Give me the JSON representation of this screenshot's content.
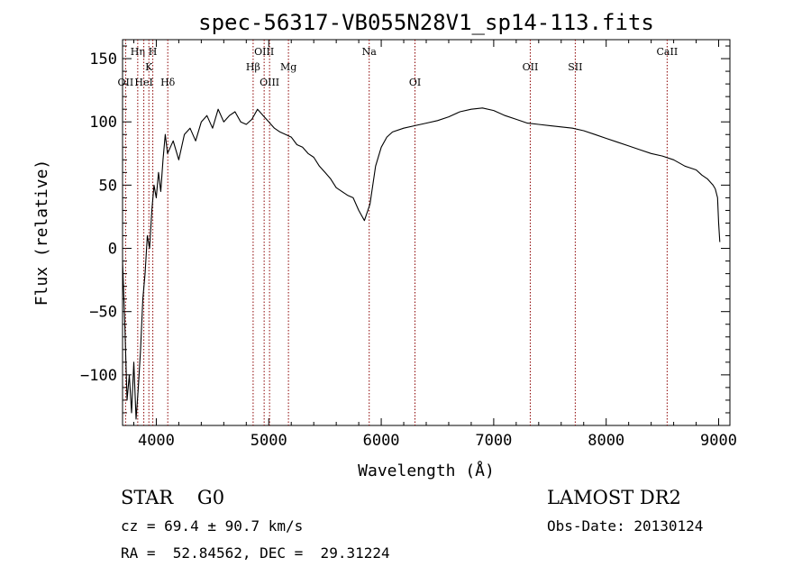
{
  "chart_data": {
    "type": "line",
    "title": "spec-56317-VB055N28V1_sp14-113.fits",
    "xlabel": "Wavelength (Å)",
    "ylabel": "Flux (relative)",
    "xlim": [
      3700,
      9100
    ],
    "ylim": [
      -140,
      165
    ],
    "xticks": [
      4000,
      5000,
      6000,
      7000,
      8000,
      9000
    ],
    "yticks": [
      -100,
      -50,
      0,
      50,
      100,
      150
    ],
    "xtick_labels": [
      "4000",
      "5000",
      "6000",
      "7000",
      "8000",
      "9000"
    ],
    "ytick_labels": [
      "−100",
      "−50",
      "0",
      "50",
      "100",
      "150"
    ],
    "grid": false,
    "line_color": "#000000",
    "marker_color": "#8b0000",
    "spectral_lines": [
      {
        "label": "OII",
        "wavelength": 3727,
        "row": 3
      },
      {
        "label": "Hη",
        "wavelength": 3835,
        "row": 1
      },
      {
        "label": "HeI",
        "wavelength": 3889,
        "row": 3
      },
      {
        "label": "K",
        "wavelength": 3934,
        "row": 2
      },
      {
        "label": "H",
        "wavelength": 3969,
        "row": 1
      },
      {
        "label": "Hδ",
        "wavelength": 4102,
        "row": 3
      },
      {
        "label": "Hβ",
        "wavelength": 4861,
        "row": 2
      },
      {
        "label": "OIII",
        "wavelength": 4959,
        "row": 1
      },
      {
        "label": "OIII",
        "wavelength": 5007,
        "row": 3
      },
      {
        "label": "Mg",
        "wavelength": 5175,
        "row": 2
      },
      {
        "label": "Na",
        "wavelength": 5893,
        "row": 1
      },
      {
        "label": "OI",
        "wavelength": 6300,
        "row": 3
      },
      {
        "label": "OII",
        "wavelength": 7325,
        "row": 2
      },
      {
        "label": "SII",
        "wavelength": 7725,
        "row": 2
      },
      {
        "label": "CaII",
        "wavelength": 8542,
        "row": 1
      }
    ],
    "series": [
      {
        "x": [
          3700,
          3720,
          3740,
          3760,
          3780,
          3800,
          3820,
          3840,
          3860,
          3880,
          3900,
          3920,
          3940,
          3960,
          3980,
          4000,
          4020,
          4040,
          4060,
          4080,
          4100,
          4150,
          4200,
          4250,
          4300,
          4350,
          4400,
          4450,
          4500,
          4550,
          4600,
          4650,
          4700,
          4750,
          4800,
          4850,
          4900,
          4950,
          5000,
          5050,
          5100,
          5150,
          5200,
          5250,
          5300,
          5350,
          5400,
          5450,
          5500,
          5550,
          5600,
          5650,
          5700,
          5750,
          5800,
          5850,
          5900,
          5950,
          6000,
          6050,
          6100,
          6200,
          6300,
          6400,
          6500,
          6600,
          6700,
          6800,
          6900,
          7000,
          7100,
          7200,
          7300,
          7400,
          7500,
          7600,
          7700,
          7800,
          7900,
          8000,
          8100,
          8200,
          8300,
          8400,
          8500,
          8600,
          8700,
          8800,
          8850,
          8900,
          8930,
          8950,
          8970,
          8990,
          9000,
          9010
        ],
        "values": [
          -10,
          -60,
          -120,
          -100,
          -130,
          -90,
          -135,
          -110,
          -80,
          -40,
          -20,
          10,
          0,
          30,
          50,
          40,
          60,
          45,
          70,
          90,
          75,
          85,
          70,
          90,
          95,
          85,
          100,
          105,
          95,
          110,
          100,
          105,
          108,
          100,
          98,
          102,
          110,
          105,
          100,
          95,
          92,
          90,
          88,
          82,
          80,
          75,
          72,
          65,
          60,
          55,
          48,
          45,
          42,
          40,
          30,
          22,
          35,
          65,
          80,
          88,
          92,
          95,
          97,
          99,
          101,
          104,
          108,
          110,
          111,
          109,
          105,
          102,
          99,
          98,
          97,
          96,
          95,
          93,
          90,
          87,
          84,
          81,
          78,
          75,
          73,
          70,
          65,
          62,
          58,
          55,
          52,
          50,
          47,
          40,
          20,
          5
        ]
      }
    ]
  },
  "info": {
    "class_label": "STAR    G0",
    "survey_label": "LAMOST DR2",
    "cz_label": "cz = 69.4 ± 90.7 km/s",
    "obs_label": "Obs-Date: 20130124",
    "radec_label": "RA =  52.84562, DEC =  29.31224"
  }
}
